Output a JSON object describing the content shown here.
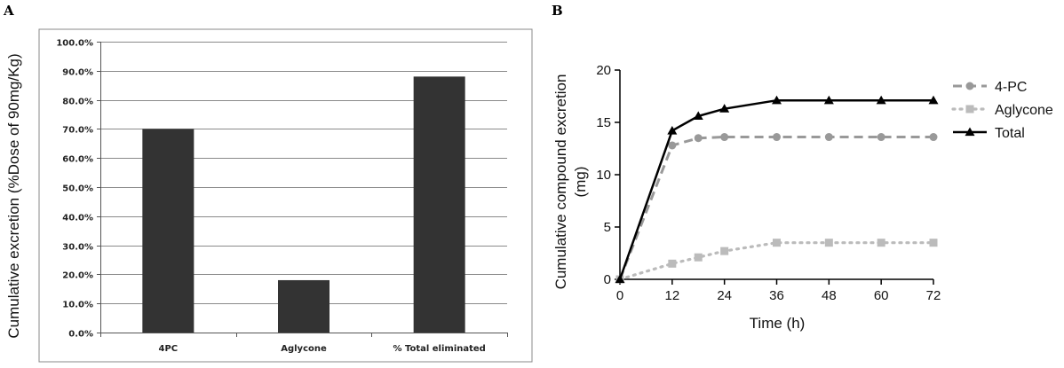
{
  "panels": {
    "A": {
      "letter": "A"
    },
    "B": {
      "letter": "B"
    }
  },
  "chart_data": [
    {
      "panel": "A",
      "type": "bar",
      "title": "",
      "categories": [
        "4PC",
        "Aglycone",
        "% Total eliminated"
      ],
      "values": [
        70.0,
        18.0,
        88.0
      ],
      "ylabel": "Cumulative excretion (%Dose of  90mg/Kg)",
      "xlabel": "",
      "ylim": [
        0,
        100
      ],
      "yticks": [
        0,
        10,
        20,
        30,
        40,
        50,
        60,
        70,
        80,
        90,
        100
      ],
      "ytick_labels": [
        "0.0%",
        "10.0%",
        "20.0%",
        "30.0%",
        "40.0%",
        "50.0%",
        "60.0%",
        "70.0%",
        "80.0%",
        "90.0%",
        "100.0%"
      ],
      "grid": true,
      "bar_color": "#333333"
    },
    {
      "panel": "B",
      "type": "line",
      "title": "",
      "xlabel": "Time (h)",
      "ylabel": "Cumulative compound excretion (mg)",
      "ylabel_lines": [
        "Cumulative compound excretion",
        "(mg)"
      ],
      "xlim": [
        0,
        72
      ],
      "ylim": [
        0,
        20
      ],
      "xticks": [
        0,
        12,
        24,
        36,
        48,
        60,
        72
      ],
      "yticks": [
        0,
        5,
        10,
        15,
        20
      ],
      "grid": false,
      "legend_position": "right",
      "series": [
        {
          "name": "4-PC",
          "x": [
            0,
            12,
            18,
            24,
            36,
            48,
            60,
            72
          ],
          "values": [
            0,
            12.8,
            13.5,
            13.6,
            13.6,
            13.6,
            13.6,
            13.6
          ],
          "color": "#999999",
          "dash": "dashed",
          "marker": "circle"
        },
        {
          "name": "Aglycone",
          "x": [
            0,
            12,
            18,
            24,
            36,
            48,
            60,
            72
          ],
          "values": [
            0,
            1.5,
            2.1,
            2.7,
            3.5,
            3.5,
            3.5,
            3.5
          ],
          "color": "#bbbbbb",
          "dash": "dotted",
          "marker": "square"
        },
        {
          "name": "Total",
          "x": [
            0,
            12,
            18,
            24,
            36,
            48,
            60,
            72
          ],
          "values": [
            0,
            14.2,
            15.6,
            16.3,
            17.1,
            17.1,
            17.1,
            17.1
          ],
          "color": "#000000",
          "dash": "solid",
          "marker": "triangle"
        }
      ]
    }
  ]
}
